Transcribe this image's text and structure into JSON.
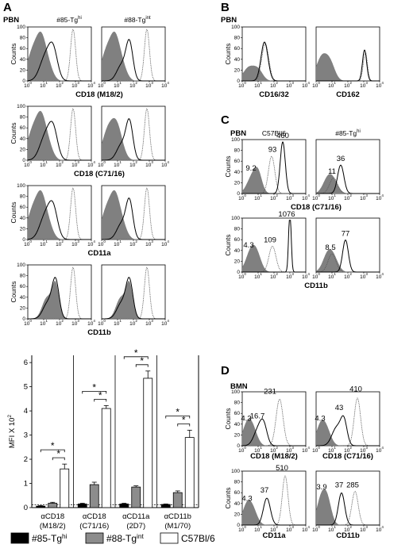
{
  "chart_data": [
    {
      "id": "A-histograms",
      "type": "histogram",
      "panel_letter": "A",
      "cell_type": "PBN",
      "columns": [
        "#85-Tg",
        "#88-Tg"
      ],
      "column_superscripts": [
        "hi",
        "int"
      ],
      "rows": [
        "CD18 (M18/2)",
        "CD18 (C71/16)",
        "CD11a",
        "CD11b"
      ],
      "x_ticks": [
        "10",
        "10",
        "10",
        "10",
        "10"
      ],
      "x_tick_exponents": [
        "0",
        "1",
        "2",
        "3",
        "4"
      ],
      "y_ticks": [
        "0",
        "20",
        "40",
        "60",
        "80",
        "100"
      ],
      "ylabel": "Counts",
      "xlim": [
        0,
        4
      ],
      "ylim": [
        0,
        100
      ]
    },
    {
      "id": "A-bars",
      "type": "bar",
      "ylabel": "MFI X 10",
      "ylabel_superscript": "2",
      "y_ticks": [
        "0",
        "1",
        "2",
        "3",
        "4",
        "5",
        "6"
      ],
      "ylim": [
        0,
        6.3
      ],
      "categories": [
        [
          "αCD18",
          "(M18/2)"
        ],
        [
          "αCD18",
          "(C71/16)"
        ],
        [
          "αCD11a",
          "(2D7)"
        ],
        [
          "αCD11b",
          "(M1/70)"
        ]
      ],
      "series": [
        {
          "name": "#85-Tg",
          "superscript": "hi",
          "values": [
            0.06,
            0.15,
            0.15,
            0.13
          ],
          "errors": [
            0.02,
            0.03,
            0.03,
            0.02
          ],
          "color": "#000000"
        },
        {
          "name": "#88-Tg",
          "superscript": "int",
          "values": [
            0.18,
            0.95,
            0.85,
            0.62
          ],
          "errors": [
            0.04,
            0.1,
            0.05,
            0.07
          ],
          "color": "#8c8c8c"
        },
        {
          "name": "C57Bl/6",
          "values": [
            1.6,
            4.1,
            5.35,
            2.9
          ],
          "errors": [
            0.2,
            0.12,
            0.3,
            0.3
          ],
          "color": "#ffffff"
        }
      ],
      "significance": "*"
    },
    {
      "id": "B-histograms",
      "type": "histogram",
      "panel_letter": "B",
      "cell_type": "PBN",
      "rows": [
        "CD16/32",
        "CD162"
      ]
    },
    {
      "id": "C-histograms",
      "type": "histogram",
      "panel_letter": "C",
      "cell_type": "PBN",
      "columns": [
        "C57Bl/6",
        "#85-Tg"
      ],
      "column_superscripts": [
        "",
        "hi"
      ],
      "rows": [
        "CD18 (C71/16)",
        "CD11b"
      ],
      "peak_labels": [
        [
          "9.2",
          "93",
          "460"
        ],
        [
          "11",
          "36"
        ],
        [
          "4.3",
          "109",
          "1076"
        ],
        [
          "8.5",
          "77"
        ]
      ]
    },
    {
      "id": "D-histograms",
      "type": "histogram",
      "panel_letter": "D",
      "cell_type": "BMN",
      "rows": [
        "CD18 (M18/2)",
        "CD18 (C71/16)",
        "CD11a",
        "CD11b"
      ],
      "peak_labels": [
        [
          "4.3",
          "16.7",
          "231"
        ],
        [
          "4.3",
          "43",
          "410"
        ],
        [
          "4.3",
          "37",
          "510"
        ],
        [
          "3.9",
          "37",
          "285"
        ]
      ]
    }
  ]
}
